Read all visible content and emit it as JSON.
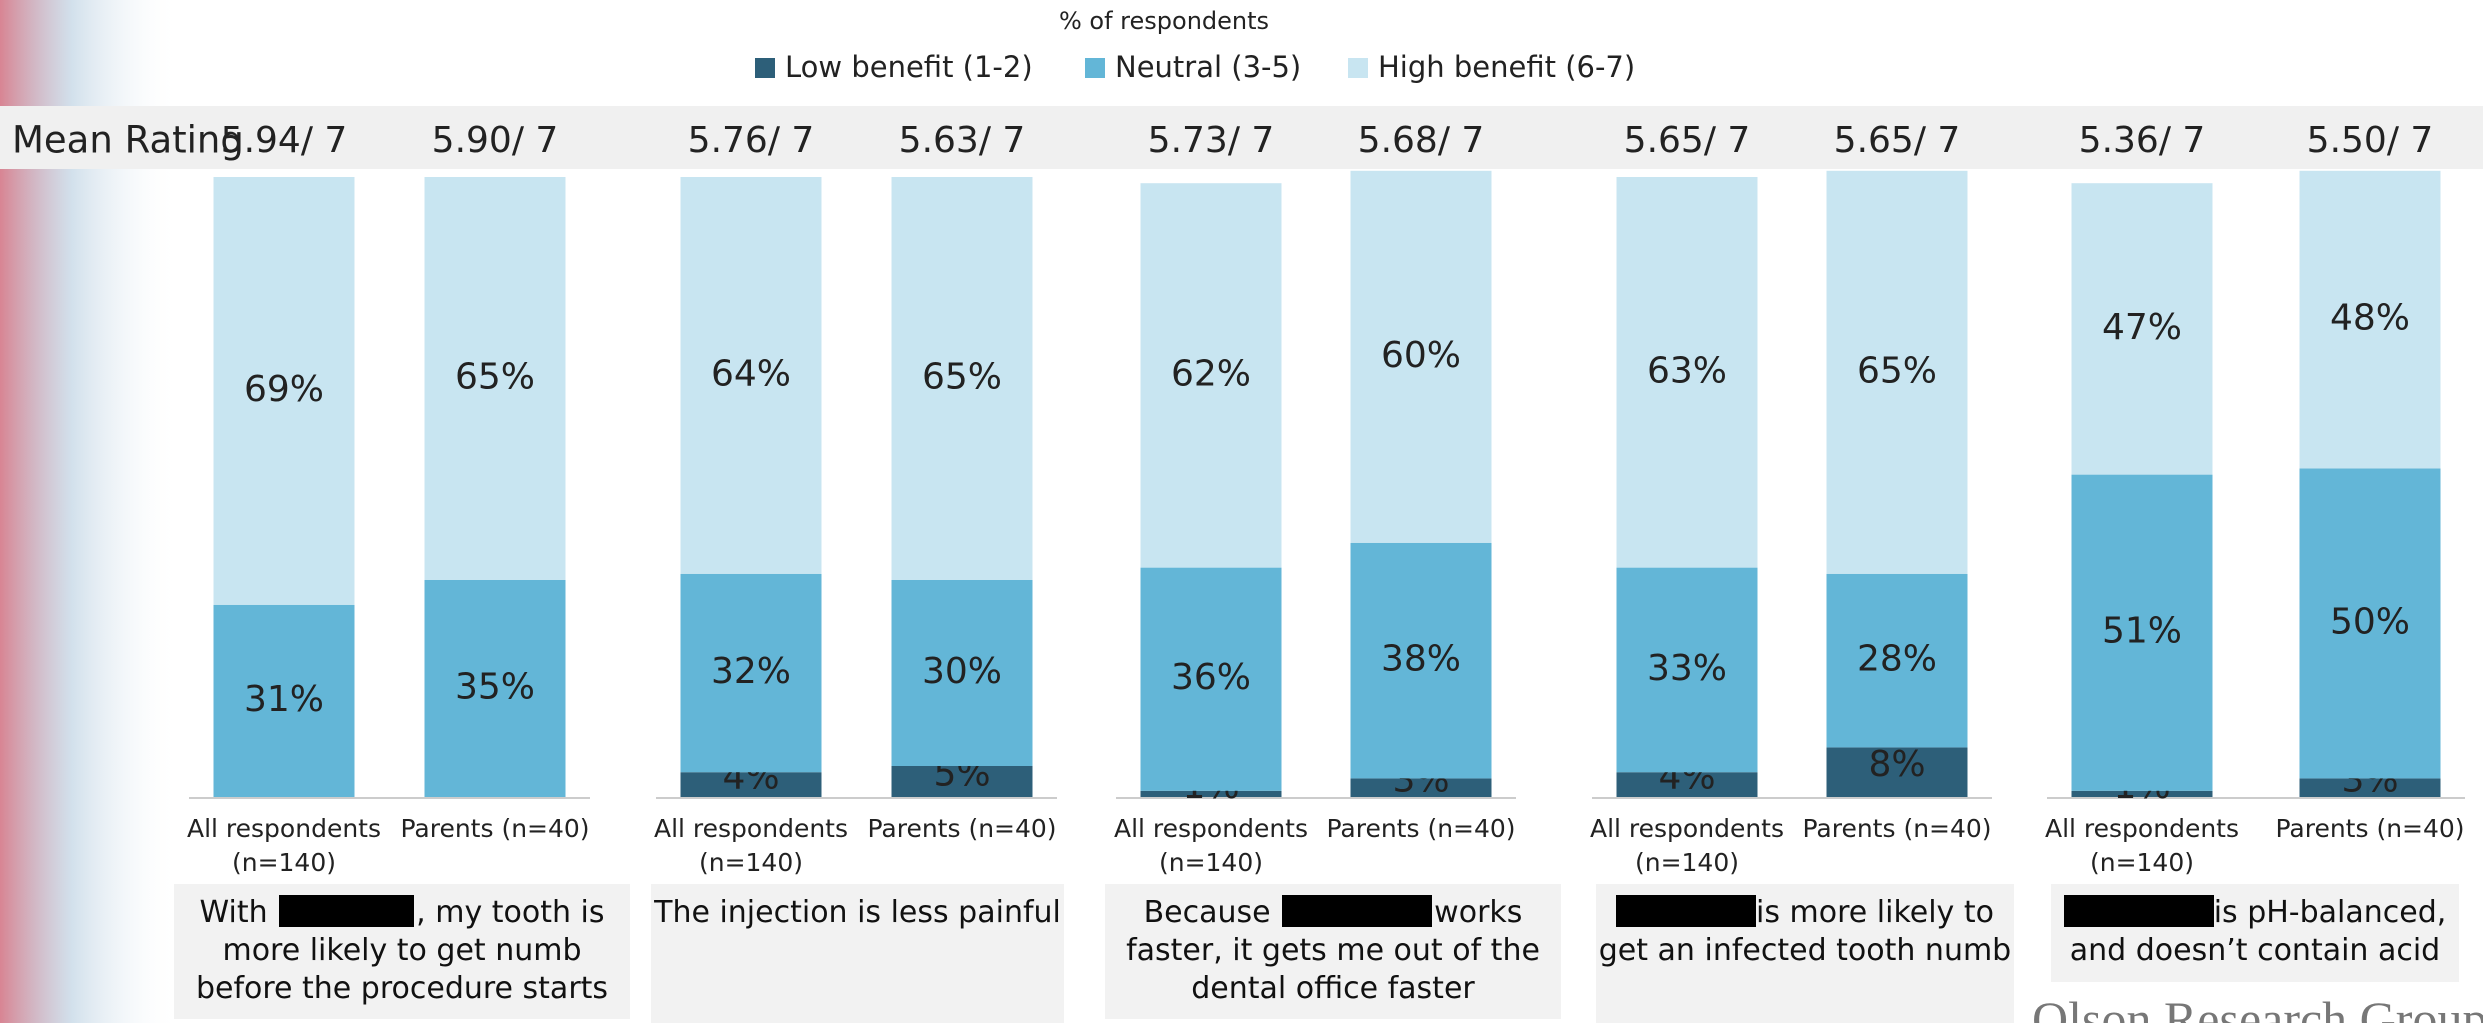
{
  "chart_data": {
    "type": "stacked_bar",
    "title": "% of respondents",
    "mean_label": "Mean Rating",
    "mean_ratings": [
      "5.94/ 7",
      "5.90/ 7",
      "5.76/ 7",
      "5.63/ 7",
      "5.73/ 7",
      "5.68/ 7",
      "5.65/ 7",
      "5.65/ 7",
      "5.36/ 7",
      "5.50/ 7"
    ],
    "categories": [
      "All respondents (n=140)",
      "Parents (n=40)",
      "All respondents (n=140)",
      "Parents (n=40)",
      "All respondents (n=140)",
      "Parents (n=40)",
      "All respondents (n=140)",
      "Parents (n=40)",
      "All respondents (n=140)",
      "Parents (n=40)"
    ],
    "series": [
      {
        "name": "Low benefit (1-2)",
        "color": "#2d5f79",
        "values": [
          null,
          null,
          4,
          5,
          1,
          3,
          4,
          8,
          1,
          3
        ],
        "value_labels": [
          null,
          null,
          "4%",
          "5%",
          "1%",
          "3%",
          "4%",
          "8%",
          "1%",
          "3%"
        ]
      },
      {
        "name": "Neutral (3-5)",
        "color": "#63b6d7",
        "values": [
          31,
          35,
          32,
          30,
          36,
          38,
          33,
          28,
          51,
          50
        ],
        "value_labels": [
          "31%",
          "35%",
          "32%",
          "30%",
          "36%",
          "38%",
          "33%",
          "28%",
          "51%",
          "50%"
        ]
      },
      {
        "name": "High benefit (6-7)",
        "color": "#c8e5f1",
        "values": [
          69,
          65,
          64,
          65,
          62,
          60,
          63,
          65,
          47,
          48
        ],
        "value_labels": [
          "69%",
          "65%",
          "64%",
          "65%",
          "62%",
          "60%",
          "63%",
          "65%",
          "47%",
          "48%"
        ]
      }
    ],
    "ylim": [
      0,
      100
    ],
    "statements": [
      [
        "With",
        ", my tooth is",
        "more likely to get numb",
        "before the procedure starts"
      ],
      [
        "The injection is less painful"
      ],
      [
        "Because",
        "works",
        "faster, it gets me out of the",
        "dental office faster"
      ],
      [
        "is more likely to",
        "get  an infected tooth numb"
      ],
      [
        "is pH-balanced,",
        "and doesn’t contain acid"
      ]
    ],
    "footer": "Olson Research Group"
  }
}
